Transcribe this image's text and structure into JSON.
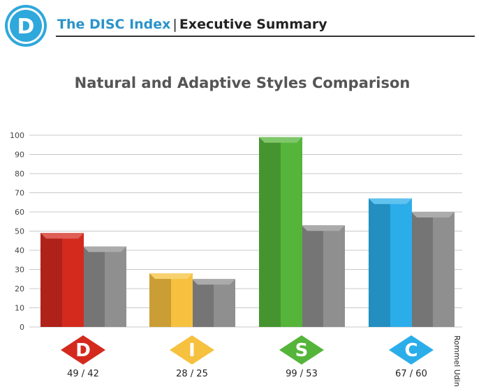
{
  "header": {
    "logo_letter": "D",
    "brand": "The DISC Index",
    "separator": "|",
    "section": "Executive Summary"
  },
  "side_label": "Rommel Udin",
  "chart_data": {
    "type": "bar",
    "title": "Natural and Adaptive Styles Comparison",
    "categories": [
      "D",
      "I",
      "S",
      "C"
    ],
    "category_labels": [
      "49 / 42",
      "28 / 25",
      "99 / 53",
      "67 / 60"
    ],
    "series": [
      {
        "values": [
          49,
          28,
          99,
          67
        ]
      },
      {
        "values": [
          42,
          25,
          53,
          60
        ]
      }
    ],
    "colors": {
      "D": "#d42a1e",
      "I": "#f6c13f",
      "S": "#55b43a",
      "C": "#2badea",
      "second_series": "#8f8f8f"
    },
    "ylim": [
      0,
      100
    ],
    "yticks": [
      0,
      10,
      20,
      30,
      40,
      50,
      60,
      70,
      80,
      90,
      100
    ],
    "grid": true,
    "xlabel": "",
    "ylabel": ""
  }
}
